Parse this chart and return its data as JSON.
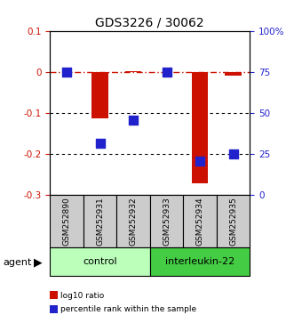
{
  "title": "GDS3226 / 30062",
  "samples": [
    "GSM252890",
    "GSM252931",
    "GSM252932",
    "GSM252933",
    "GSM252934",
    "GSM252935"
  ],
  "log10_ratio": [
    0.0,
    -0.113,
    0.002,
    0.0,
    -0.27,
    -0.008
  ],
  "percentile_rank_pct": [
    75,
    32,
    46,
    75,
    21,
    25
  ],
  "ylim_left": [
    -0.3,
    0.1
  ],
  "ylim_right": [
    0,
    100
  ],
  "yticks_left": [
    0.1,
    0.0,
    -0.1,
    -0.2,
    -0.3
  ],
  "yticks_right": [
    100,
    75,
    50,
    25,
    0
  ],
  "ytick_labels_left": [
    "0.1",
    "0",
    "-0.1",
    "-0.2",
    "-0.3"
  ],
  "ytick_labels_right": [
    "100%",
    "75",
    "50",
    "25",
    "0"
  ],
  "bar_color": "#cc1100",
  "dot_color": "#2222cc",
  "bar_width": 0.5,
  "dot_size": 55,
  "groups": [
    {
      "label": "control",
      "n": 3,
      "color": "#bbffbb"
    },
    {
      "label": "interleukin-22",
      "n": 3,
      "color": "#44cc44"
    }
  ],
  "agent_label": "agent",
  "legend_entries": [
    {
      "label": "log10 ratio",
      "color": "#cc1100"
    },
    {
      "label": "percentile rank within the sample",
      "color": "#2222cc"
    }
  ],
  "ylabel_left_color": "#cc1100",
  "ylabel_right_color": "#2222cc",
  "bg_color": "#ffffff",
  "sample_box_color": "#cccccc",
  "title_fontsize": 10
}
